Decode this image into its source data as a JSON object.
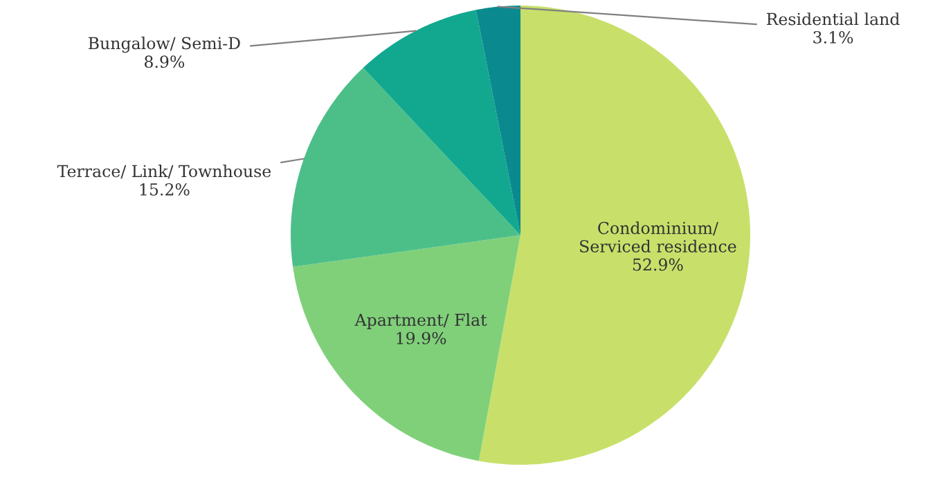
{
  "chart_data": {
    "type": "pie",
    "categories": [
      "Condominium/\nServiced residence",
      "Apartment/ Flat",
      "Terrace/ Link/ Townhouse",
      "Bungalow/ Semi-D",
      "Residential land"
    ],
    "values": [
      52.9,
      19.9,
      15.2,
      8.9,
      3.1
    ],
    "value_labels": [
      "52.9%",
      "19.9%",
      "15.2%",
      "8.9%",
      "3.1%"
    ],
    "colors": [
      "#c8e06a",
      "#80d07a",
      "#4cbf88",
      "#12a890",
      "#0a8a8e"
    ]
  }
}
